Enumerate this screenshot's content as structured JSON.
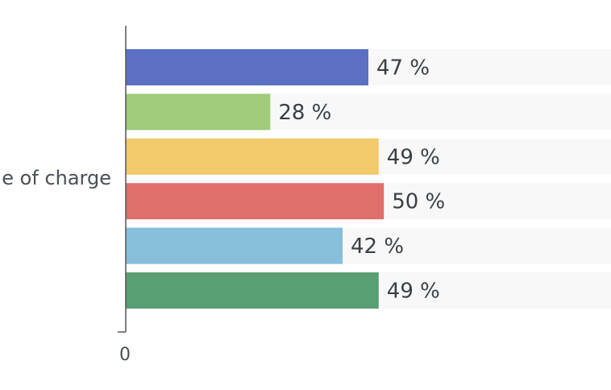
{
  "chart_data": {
    "type": "bar",
    "orientation": "horizontal",
    "category_label": "e of charge",
    "series": [
      {
        "value": 47,
        "label": "47 %",
        "color": "#5b70c3"
      },
      {
        "value": 28,
        "label": "28 %",
        "color": "#9fcb7b"
      },
      {
        "value": 49,
        "label": "49 %",
        "color": "#f2c96b"
      },
      {
        "value": 50,
        "label": "50 %",
        "color": "#e06e6a"
      },
      {
        "value": 42,
        "label": "42 %",
        "color": "#86bedb"
      },
      {
        "value": 49,
        "label": "49 %",
        "color": "#5a9e74"
      }
    ],
    "xlim": [
      0,
      94
    ],
    "x_ticks": [
      "0"
    ],
    "track_color": "#f8f8f8",
    "axis_color": "#555555",
    "legend": "none",
    "grid": false
  }
}
